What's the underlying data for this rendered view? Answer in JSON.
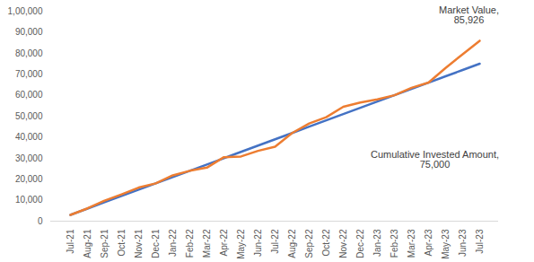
{
  "chart_data": {
    "type": "line",
    "categories": [
      "Jul-21",
      "Aug-21",
      "Sep-21",
      "Oct-21",
      "Nov-21",
      "Dec-21",
      "Jan-22",
      "Feb-22",
      "Mar-22",
      "Apr-22",
      "May-22",
      "Jun-22",
      "Jul-22",
      "Aug-22",
      "Sep-22",
      "Oct-22",
      "Nov-22",
      "Dec-22",
      "Jan-23",
      "Feb-23",
      "Mar-23",
      "Apr-23",
      "May-23",
      "Jun-23",
      "Jul-23"
    ],
    "series": [
      {
        "name": "Cumulative Invested Amount",
        "color": "#4472c4",
        "values": [
          3000,
          6000,
          9000,
          12000,
          15000,
          18000,
          21000,
          24000,
          27000,
          30000,
          33000,
          36000,
          39000,
          42000,
          45000,
          48000,
          51000,
          54000,
          57000,
          60000,
          63000,
          66000,
          69000,
          72000,
          75000
        ]
      },
      {
        "name": "Market Value",
        "color": "#ed7d31",
        "values": [
          3000,
          6100,
          9800,
          12800,
          16000,
          18000,
          21800,
          24000,
          25500,
          30500,
          30800,
          33500,
          35500,
          42000,
          46500,
          49500,
          54500,
          56500,
          58000,
          60000,
          63500,
          66000,
          73000,
          79500,
          85926
        ]
      }
    ],
    "ylim": [
      0,
      100000
    ],
    "yticks": [
      0,
      {
        "value": 10000,
        "label": "10,000"
      },
      {
        "value": 20000,
        "label": "20,000"
      },
      {
        "value": 30000,
        "label": "30,000"
      },
      {
        "value": 40000,
        "label": "40,000"
      },
      {
        "value": 50000,
        "label": "50,000"
      },
      {
        "value": 60000,
        "label": "60,000"
      },
      {
        "value": 70000,
        "label": "70,000"
      },
      {
        "value": 80000,
        "label": "80,000"
      },
      {
        "value": 90000,
        "label": "90,000"
      },
      {
        "value": 100000,
        "label": "1,00,000"
      }
    ],
    "grid": false,
    "annotations": [
      {
        "text": "Market Value,\n85,926",
        "x": "Jul-23",
        "y": 85926
      },
      {
        "text": "Cumulative Invested Amount,\n75,000",
        "x": "Jul-23",
        "y": 75000
      }
    ]
  }
}
